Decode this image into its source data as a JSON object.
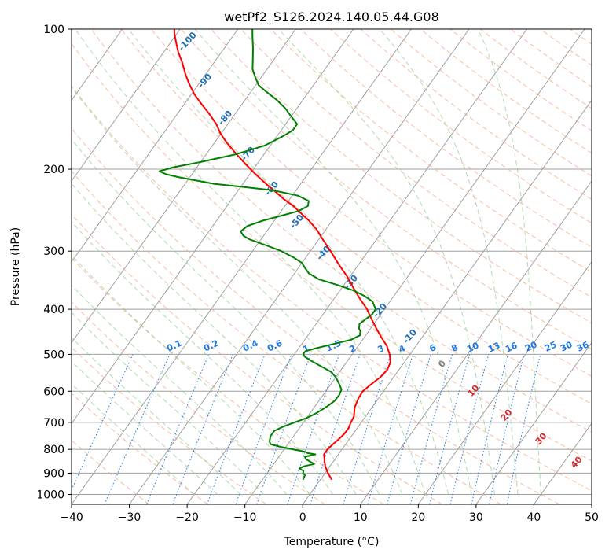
{
  "chart_data": {
    "type": "line",
    "subtype": "skew-t log-p diagram",
    "title": "wetPf2_S126.2024.140.05.44.G08",
    "xlabel": "Temperature (°C)",
    "ylabel": "Pressure (hPa)",
    "xlim": [
      -40,
      50
    ],
    "ylim": [
      1050,
      100
    ],
    "y_scale": "log",
    "grid": true,
    "x_ticks": [
      -40,
      -30,
      -20,
      -10,
      0,
      10,
      20,
      30,
      40,
      50
    ],
    "x_tick_labels": [
      "−40",
      "−30",
      "−20",
      "−10",
      "0",
      "10",
      "20",
      "30",
      "40",
      "50"
    ],
    "y_ticks": [
      1000,
      900,
      800,
      700,
      600,
      500,
      400,
      300,
      200,
      100
    ],
    "y_tick_labels": [
      "1000",
      "900",
      "800",
      "700",
      "600",
      "500",
      "400",
      "300",
      "200",
      "100"
    ],
    "series": [
      {
        "color": "#ff0000",
        "points": [
          [
            930,
            2.0
          ],
          [
            900,
            0.5
          ],
          [
            870,
            -0.8
          ],
          [
            850,
            -1.5
          ],
          [
            820,
            -2.5
          ],
          [
            800,
            -2.5
          ],
          [
            780,
            -2.2
          ],
          [
            760,
            -1.8
          ],
          [
            740,
            -1.5
          ],
          [
            720,
            -1.5
          ],
          [
            700,
            -1.8
          ],
          [
            680,
            -2.0
          ],
          [
            650,
            -3.0
          ],
          [
            620,
            -3.5
          ],
          [
            600,
            -3.6
          ],
          [
            580,
            -3.0
          ],
          [
            560,
            -2.3
          ],
          [
            540,
            -2.0
          ],
          [
            520,
            -2.4
          ],
          [
            500,
            -3.5
          ],
          [
            480,
            -5.0
          ],
          [
            460,
            -7.0
          ],
          [
            440,
            -9.0
          ],
          [
            420,
            -11.0
          ],
          [
            400,
            -13.0
          ],
          [
            380,
            -15.5
          ],
          [
            360,
            -18.0
          ],
          [
            340,
            -20.5
          ],
          [
            320,
            -23.5
          ],
          [
            300,
            -26.5
          ],
          [
            285,
            -29.0
          ],
          [
            270,
            -31.5
          ],
          [
            258,
            -34.0
          ],
          [
            250,
            -36.0
          ],
          [
            240,
            -38.5
          ],
          [
            232,
            -41.0
          ],
          [
            225,
            -43.0
          ],
          [
            215,
            -46.0
          ],
          [
            205,
            -49.0
          ],
          [
            195,
            -52.0
          ],
          [
            185,
            -55.0
          ],
          [
            175,
            -58.0
          ],
          [
            168,
            -60.0
          ],
          [
            160,
            -62.0
          ],
          [
            152,
            -64.5
          ],
          [
            145,
            -67.0
          ],
          [
            138,
            -69.5
          ],
          [
            130,
            -72.0
          ],
          [
            125,
            -73.5
          ],
          [
            118,
            -75.5
          ],
          [
            112,
            -77.5
          ],
          [
            107,
            -79.0
          ],
          [
            102,
            -80.5
          ],
          [
            100,
            -81.0
          ]
        ]
      },
      {
        "color": "#008000",
        "points": [
          [
            930,
            -3.0
          ],
          [
            910,
            -3.2
          ],
          [
            900,
            -3.8
          ],
          [
            890,
            -4.0
          ],
          [
            880,
            -5.0
          ],
          [
            870,
            -4.5
          ],
          [
            860,
            -3.0
          ],
          [
            850,
            -4.0
          ],
          [
            840,
            -5.0
          ],
          [
            830,
            -5.5
          ],
          [
            820,
            -4.0
          ],
          [
            815,
            -5.5
          ],
          [
            810,
            -6.0
          ],
          [
            800,
            -8.5
          ],
          [
            790,
            -11.0
          ],
          [
            780,
            -13.0
          ],
          [
            770,
            -13.5
          ],
          [
            750,
            -14.0
          ],
          [
            730,
            -14.0
          ],
          [
            715,
            -13.0
          ],
          [
            700,
            -11.5
          ],
          [
            685,
            -10.0
          ],
          [
            670,
            -9.0
          ],
          [
            650,
            -8.0
          ],
          [
            630,
            -7.3
          ],
          [
            610,
            -7.2
          ],
          [
            595,
            -7.5
          ],
          [
            580,
            -8.5
          ],
          [
            560,
            -10.0
          ],
          [
            545,
            -11.5
          ],
          [
            530,
            -14.0
          ],
          [
            515,
            -16.5
          ],
          [
            505,
            -18.0
          ],
          [
            498,
            -18.5
          ],
          [
            492,
            -18.5
          ],
          [
            485,
            -17.0
          ],
          [
            475,
            -14.5
          ],
          [
            465,
            -12.0
          ],
          [
            455,
            -11.0
          ],
          [
            445,
            -11.5
          ],
          [
            440,
            -12.0
          ],
          [
            430,
            -12.5
          ],
          [
            420,
            -12.0
          ],
          [
            410,
            -11.5
          ],
          [
            400,
            -11.5
          ],
          [
            395,
            -12.0
          ],
          [
            385,
            -13.0
          ],
          [
            375,
            -15.0
          ],
          [
            365,
            -17.5
          ],
          [
            355,
            -21.0
          ],
          [
            345,
            -25.0
          ],
          [
            335,
            -27.5
          ],
          [
            325,
            -29.0
          ],
          [
            318,
            -30.0
          ],
          [
            310,
            -32.0
          ],
          [
            300,
            -35.0
          ],
          [
            290,
            -39.0
          ],
          [
            283,
            -42.0
          ],
          [
            278,
            -43.5
          ],
          [
            272,
            -44.5
          ],
          [
            265,
            -44.0
          ],
          [
            258,
            -42.0
          ],
          [
            252,
            -39.5
          ],
          [
            246,
            -37.0
          ],
          [
            240,
            -36.0
          ],
          [
            234,
            -36.5
          ],
          [
            228,
            -39.0
          ],
          [
            222,
            -44.0
          ],
          [
            218,
            -50.0
          ],
          [
            215,
            -55.0
          ],
          [
            212,
            -58.0
          ],
          [
            208,
            -62.0
          ],
          [
            205,
            -64.5
          ],
          [
            202,
            -66.0
          ],
          [
            198,
            -64.0
          ],
          [
            193,
            -60.0
          ],
          [
            186,
            -55.0
          ],
          [
            178,
            -51.0
          ],
          [
            170,
            -49.0
          ],
          [
            165,
            -48.0
          ],
          [
            160,
            -48.0
          ],
          [
            154,
            -50.0
          ],
          [
            148,
            -52.0
          ],
          [
            142,
            -54.5
          ],
          [
            137,
            -57.0
          ],
          [
            132,
            -59.5
          ],
          [
            127,
            -61.0
          ],
          [
            122,
            -62.5
          ],
          [
            117,
            -63.5
          ],
          [
            110,
            -65.0
          ],
          [
            104,
            -66.5
          ],
          [
            100,
            -67.5
          ]
        ]
      }
    ],
    "dry_adiabat_labels": [
      "-100",
      "-90",
      "-80",
      "-70",
      "-60",
      "-50",
      "-40",
      "-30",
      "-20",
      "-10",
      "0",
      "10",
      "20",
      "30",
      "40"
    ],
    "mixing_ratio_labels": [
      "0.1",
      "0.2",
      "0.4",
      "0.6",
      "1",
      "1.5",
      "2",
      "3",
      "4",
      "6",
      "8",
      "10",
      "13",
      "16",
      "20",
      "25",
      "30",
      "36"
    ],
    "colors": {
      "temperature": "#ff0000",
      "dewpoint": "#008000",
      "isotherm": "#a0a0a0",
      "dry_adiabat": "#f4a582",
      "moist_adiabat": "#8fc98f",
      "mixing_ratio": "#1f77e4",
      "cold_label": "#1f6fb4",
      "warm_label": "#d62728",
      "zero_label": "#7f7f7f"
    }
  }
}
